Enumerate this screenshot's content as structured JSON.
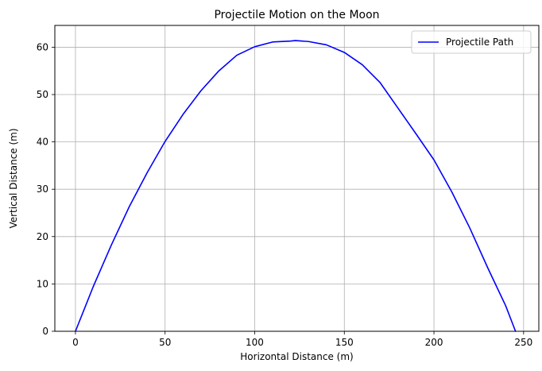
{
  "chart_data": {
    "type": "line",
    "title": "Projectile Motion on the Moon",
    "xlabel": "Horizontal Distance (m)",
    "ylabel": "Vertical Distance (m)",
    "xlim": [
      -11.5,
      258.5
    ],
    "ylim": [
      0,
      64.6
    ],
    "xticks": [
      0,
      50,
      100,
      150,
      200,
      250
    ],
    "yticks": [
      0,
      10,
      20,
      30,
      40,
      50,
      60
    ],
    "grid": true,
    "legend_position": "top-right",
    "series": [
      {
        "name": "Projectile Path",
        "color": "#0000ff",
        "x": [
          0,
          10,
          20,
          30,
          40,
          50,
          60,
          70,
          80,
          90,
          100,
          110,
          120,
          122.7,
          130,
          140,
          150,
          160,
          170,
          180,
          190,
          200,
          210,
          220,
          230,
          240,
          245.5
        ],
        "y": [
          0,
          9.5,
          18.2,
          26.3,
          33.5,
          40.1,
          45.8,
          50.8,
          55.0,
          58.3,
          60.1,
          61.1,
          61.3,
          61.4,
          61.2,
          60.5,
          58.9,
          56.3,
          52.5,
          47.1,
          41.7,
          36.2,
          29.4,
          21.8,
          13.4,
          5.4,
          0
        ]
      }
    ]
  }
}
